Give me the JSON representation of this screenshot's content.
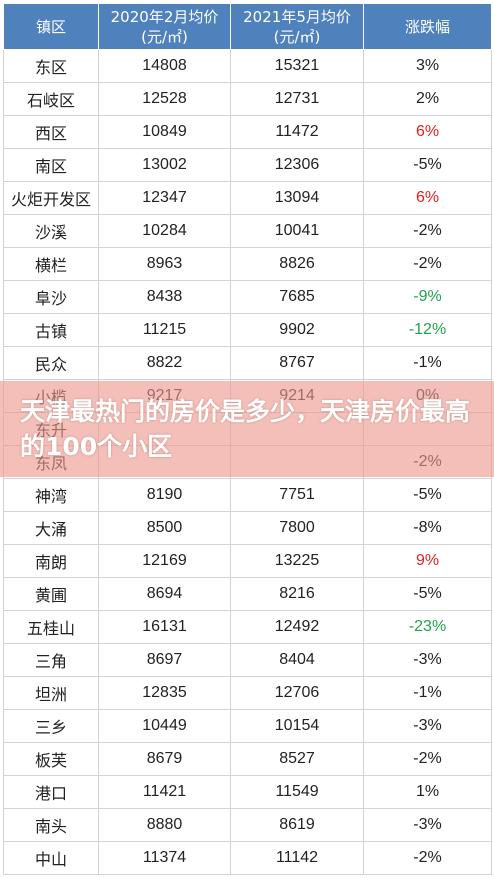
{
  "table": {
    "headers": [
      "镇区",
      "2020年2月均价\n(元/㎡)",
      "2021年5月均价\n(元/㎡)",
      "涨跌幅"
    ],
    "header_lines": [
      [
        "镇区"
      ],
      [
        "2020年2月均价",
        "(元/㎡)"
      ],
      [
        "2021年5月均价",
        "(元/㎡)"
      ],
      [
        "涨跌幅"
      ]
    ],
    "rows": [
      {
        "town": "东区",
        "price_2020": "14808",
        "price_2021": "15321",
        "change": "3%",
        "highlight": ""
      },
      {
        "town": "石岐区",
        "price_2020": "12528",
        "price_2021": "12731",
        "change": "2%",
        "highlight": ""
      },
      {
        "town": "西区",
        "price_2020": "10849",
        "price_2021": "11472",
        "change": "6%",
        "highlight": "pos"
      },
      {
        "town": "南区",
        "price_2020": "13002",
        "price_2021": "12306",
        "change": "-5%",
        "highlight": ""
      },
      {
        "town": "火炬开发区",
        "price_2020": "12347",
        "price_2021": "13094",
        "change": "6%",
        "highlight": "pos"
      },
      {
        "town": "沙溪",
        "price_2020": "10284",
        "price_2021": "10041",
        "change": "-2%",
        "highlight": ""
      },
      {
        "town": "横栏",
        "price_2020": "8963",
        "price_2021": "8826",
        "change": "-2%",
        "highlight": ""
      },
      {
        "town": "阜沙",
        "price_2020": "8438",
        "price_2021": "7685",
        "change": "-9%",
        "highlight": "neg"
      },
      {
        "town": "古镇",
        "price_2020": "11215",
        "price_2021": "9902",
        "change": "-12%",
        "highlight": "neg"
      },
      {
        "town": "民众",
        "price_2020": "8822",
        "price_2021": "8767",
        "change": "-1%",
        "highlight": ""
      },
      {
        "town": "小榄",
        "price_2020": "9217",
        "price_2021": "9214",
        "change": "0%",
        "highlight": ""
      },
      {
        "town": "东升",
        "price_2020": "",
        "price_2021": "",
        "change": "",
        "highlight": ""
      },
      {
        "town": "东凤",
        "price_2020": "",
        "price_2021": "",
        "change": "-2%",
        "highlight": ""
      },
      {
        "town": "神湾",
        "price_2020": "8190",
        "price_2021": "7751",
        "change": "-5%",
        "highlight": ""
      },
      {
        "town": "大涌",
        "price_2020": "8500",
        "price_2021": "7800",
        "change": "-8%",
        "highlight": ""
      },
      {
        "town": "南朗",
        "price_2020": "12169",
        "price_2021": "13225",
        "change": "9%",
        "highlight": "pos"
      },
      {
        "town": "黄圃",
        "price_2020": "8694",
        "price_2021": "8216",
        "change": "-5%",
        "highlight": ""
      },
      {
        "town": "五桂山",
        "price_2020": "16131",
        "price_2021": "12492",
        "change": "-23%",
        "highlight": "neg"
      },
      {
        "town": "三角",
        "price_2020": "8697",
        "price_2021": "8404",
        "change": "-3%",
        "highlight": ""
      },
      {
        "town": "坦洲",
        "price_2020": "12835",
        "price_2021": "12706",
        "change": "-1%",
        "highlight": ""
      },
      {
        "town": "三乡",
        "price_2020": "10449",
        "price_2021": "10154",
        "change": "-3%",
        "highlight": ""
      },
      {
        "town": "板芙",
        "price_2020": "8679",
        "price_2021": "8527",
        "change": "-2%",
        "highlight": ""
      },
      {
        "town": "港口",
        "price_2020": "11421",
        "price_2021": "11549",
        "change": "1%",
        "highlight": ""
      },
      {
        "town": "南头",
        "price_2020": "8880",
        "price_2021": "8619",
        "change": "-3%",
        "highlight": ""
      },
      {
        "town": "中山",
        "price_2020": "11374",
        "price_2021": "11142",
        "change": "-2%",
        "highlight": ""
      }
    ]
  },
  "banner": {
    "title": "天津最热门的房价是多少，天津房价最高的100个小区"
  },
  "colors": {
    "header_bg": "#4f81bd",
    "positive_change": "#e02020",
    "negative_change": "#1fa34a",
    "banner_overlay": "#ec988c"
  }
}
